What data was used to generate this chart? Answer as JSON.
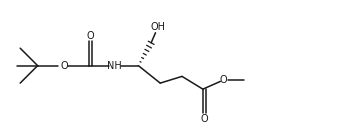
{
  "background": "#ffffff",
  "line_color": "#1a1a1a",
  "lw": 1.1,
  "figsize": [
    3.54,
    1.38
  ],
  "dpi": 100,
  "xlim": [
    0,
    10.5
  ],
  "ylim": [
    0,
    3.9
  ]
}
